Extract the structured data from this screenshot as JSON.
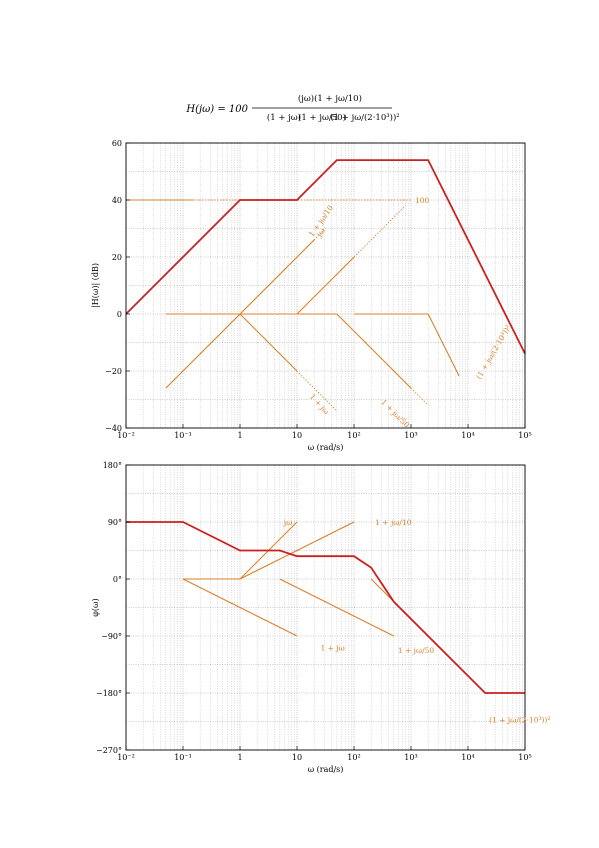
{
  "formula": {
    "lhs": "H(jω) = 100",
    "num_factor1": "(jω)",
    "num_factor2": "(1 + jω/10)",
    "den_factor1": "(1 + jω)",
    "den_factor2": "(1 + jω/50)",
    "den_factor3": "(1 + jω/(2·10³))²"
  },
  "colors": {
    "total": "#cc1f1f",
    "asymptote": "#d9822b",
    "grid_major": "#9a9a9a",
    "grid_minor": "#b5b5b5"
  },
  "chart_data": [
    {
      "type": "line",
      "name": "magnitude",
      "xscale": "log",
      "xlim": [
        0.01,
        100000
      ],
      "ylim": [
        -40,
        60
      ],
      "xlabel": "ω (rad/s)",
      "ylabel": "|H(ω)| (dB)",
      "x_ticks": [
        "10⁻²",
        "10⁻¹",
        "1",
        "10",
        "10²",
        "10³",
        "10⁴",
        "10⁵"
      ],
      "y_ticks": [
        "−40",
        "−20",
        "0",
        "20",
        "40",
        "60"
      ],
      "grid": true,
      "series": [
        {
          "x": [
            0.01,
            1,
            10,
            50,
            2000,
            100000
          ],
          "y": [
            0,
            40,
            40,
            54,
            54,
            -13.9
          ],
          "style": "total"
        },
        {
          "x": [
            0.01,
            1000
          ],
          "y": [
            40,
            40
          ],
          "style": "asym",
          "solid_until": 0.15
        },
        {
          "x": [
            0.05,
            30
          ],
          "y": [
            -26,
            29.5
          ],
          "style": "asym",
          "solid_until": 20
        },
        {
          "x": [
            0.05,
            1,
            50
          ],
          "y": [
            0,
            0,
            -34
          ],
          "style": "asym",
          "solid_until": 10
        },
        {
          "x": [
            0.05,
            10,
            800
          ],
          "y": [
            0,
            0,
            38
          ],
          "style": "asym",
          "solid_until": 100
        },
        {
          "x": [
            0.05,
            50,
            2000
          ],
          "y": [
            0,
            0,
            -32
          ],
          "style": "asym",
          "solid_until": 1000
        },
        {
          "x": [
            100,
            2000,
            7000
          ],
          "y": [
            0,
            0,
            -21.8
          ],
          "style": "asym",
          "solid_until": 100000
        }
      ],
      "annotations": [
        "100",
        "jω",
        "1 + jω/10",
        "1 + jω",
        "1 + jω/50",
        "(1 + jω/(2·10³))²"
      ]
    },
    {
      "type": "line",
      "name": "phase",
      "xscale": "log",
      "xlim": [
        0.01,
        100000
      ],
      "ylim": [
        -270,
        180
      ],
      "xlabel": "ω (rad/s)",
      "ylabel": "φ(ω)",
      "x_ticks": [
        "10⁻²",
        "10⁻¹",
        "1",
        "10",
        "10²",
        "10³",
        "10⁴",
        "10⁵"
      ],
      "y_ticks": [
        "−270°",
        "−180°",
        "−90°",
        "0°",
        "90°",
        "180°"
      ],
      "grid": true,
      "series": [
        {
          "x": [
            0.01,
            0.1,
            1,
            5,
            10,
            100,
            200,
            500,
            20000,
            100000
          ],
          "y": [
            90,
            90,
            45,
            45,
            36,
            36,
            18,
            -36,
            -180,
            -180
          ],
          "style": "total"
        },
        {
          "x": [
            0.1,
            1,
            10
          ],
          "y": [
            0,
            0,
            90
          ],
          "style": "asym"
        },
        {
          "x": [
            0.1,
            10
          ],
          "y": [
            0,
            -90
          ],
          "style": "asym"
        },
        {
          "x": [
            1,
            100
          ],
          "y": [
            0,
            90
          ],
          "style": "asym"
        },
        {
          "x": [
            5,
            500
          ],
          "y": [
            0,
            -90
          ],
          "style": "asym"
        },
        {
          "x": [
            200,
            20000
          ],
          "y": [
            0,
            -180
          ],
          "style": "asym"
        }
      ],
      "annotations": [
        "jω",
        "1 + jω/10",
        "1 + jω",
        "1 + jω/50",
        "(1 + jω/(2·10³))²"
      ]
    }
  ]
}
